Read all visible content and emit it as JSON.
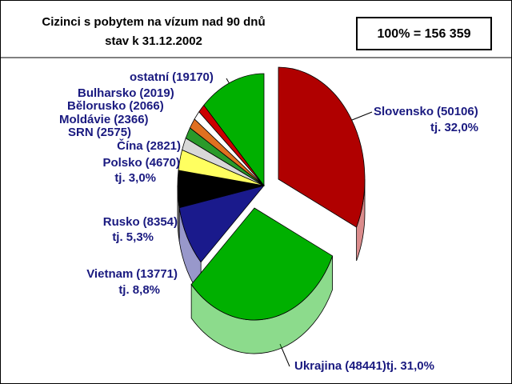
{
  "chart_data": {
    "type": "pie3d",
    "title": "Cizinci s pobytem na vízum nad 90 dnů",
    "subtitle": "stav k 31.12.2002",
    "total_label": "100% = 156 359",
    "categories": [
      "Slovensko",
      "Ukrajina",
      "Vietnam",
      "Rusko",
      "Polsko",
      "Čína",
      "SRN",
      "Moldávie",
      "Bělorusko",
      "Bulharsko",
      "ostatní"
    ],
    "values": [
      50106,
      48441,
      13771,
      8354,
      4670,
      2821,
      2575,
      2366,
      2066,
      2019,
      19170
    ],
    "value_labels": [
      "(50106)",
      "(48441)",
      "(13771)",
      "(8354)",
      "(4670)",
      "(2821)",
      "(2575)",
      "(2366)",
      "(2066)",
      "(2019)",
      "(19170)"
    ],
    "percent_labels": [
      "tj. 32,0%",
      "tj. 31,0%",
      "tj. 8,8%",
      "tj. 5,3%",
      "tj. 3,0%",
      null,
      null,
      null,
      null,
      null,
      null
    ],
    "colors": [
      "#b00000",
      "#00b000",
      "#1a1a8c",
      "#000000",
      "#ffff60",
      "#d8d8d8",
      "#2a9a2a",
      "#e07020",
      "#ffffff",
      "#cc0000",
      "#00b000"
    ]
  }
}
